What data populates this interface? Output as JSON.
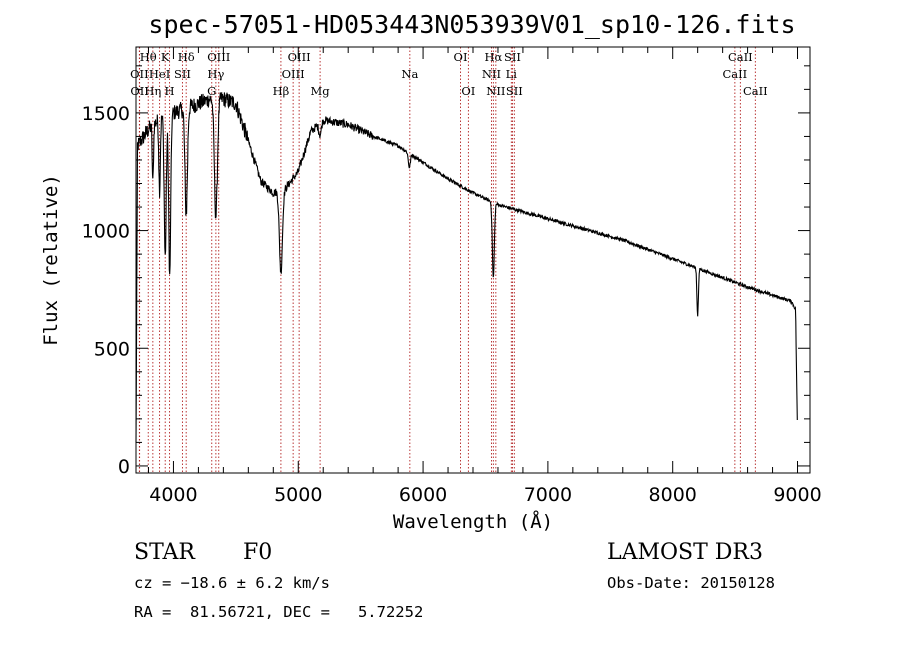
{
  "chart_data": {
    "type": "line",
    "title": "spec-57051-HD053443N053939V01_sp10-126.fits",
    "xlabel": "Wavelength (Å)",
    "ylabel": "Flux (relative)",
    "xlim": [
      3700,
      9100
    ],
    "ylim": [
      -30,
      1780
    ],
    "xticks": [
      4000,
      5000,
      6000,
      7000,
      8000,
      9000
    ],
    "yticks": [
      0,
      500,
      1000,
      1500
    ],
    "series": [
      {
        "name": "flux",
        "continuum": [
          [
            3700,
            1350
          ],
          [
            3800,
            1430
          ],
          [
            3900,
            1480
          ],
          [
            4000,
            1500
          ],
          [
            4100,
            1520
          ],
          [
            4200,
            1540
          ],
          [
            4300,
            1560
          ],
          [
            4400,
            1560
          ],
          [
            4500,
            1540
          ],
          [
            4600,
            1380
          ],
          [
            4700,
            1210
          ],
          [
            4800,
            1160
          ],
          [
            4900,
            1180
          ],
          [
            5000,
            1250
          ],
          [
            5100,
            1420
          ],
          [
            5200,
            1470
          ],
          [
            5400,
            1450
          ],
          [
            5600,
            1400
          ],
          [
            5800,
            1360
          ],
          [
            6000,
            1290
          ],
          [
            6200,
            1220
          ],
          [
            6400,
            1160
          ],
          [
            6600,
            1110
          ],
          [
            6800,
            1080
          ],
          [
            7000,
            1050
          ],
          [
            7200,
            1020
          ],
          [
            7400,
            990
          ],
          [
            7600,
            960
          ],
          [
            7800,
            920
          ],
          [
            8000,
            880
          ],
          [
            8200,
            840
          ],
          [
            8400,
            800
          ],
          [
            8600,
            760
          ],
          [
            8800,
            725
          ],
          [
            8950,
            700
          ],
          [
            9000,
            650
          ]
        ],
        "absorption_lines": [
          {
            "center": 3934,
            "depth": 600,
            "width": 8
          },
          {
            "center": 3970,
            "depth": 700,
            "width": 8
          },
          {
            "center": 3889,
            "depth": 300,
            "width": 6
          },
          {
            "center": 3835,
            "depth": 250,
            "width": 5
          },
          {
            "center": 4102,
            "depth": 450,
            "width": 10
          },
          {
            "center": 4340,
            "depth": 500,
            "width": 12
          },
          {
            "center": 4861,
            "depth": 350,
            "width": 12
          },
          {
            "center": 6563,
            "depth": 320,
            "width": 8
          },
          {
            "center": 8200,
            "depth": 200,
            "width": 6
          },
          {
            "center": 5890,
            "depth": 60,
            "width": 8
          },
          {
            "center": 5175,
            "depth": 50,
            "width": 10
          }
        ]
      }
    ],
    "emission_lines": [
      {
        "label": "OII",
        "wave": 3727,
        "row": 2
      },
      {
        "label": "OII",
        "wave": 3729,
        "row": 3
      },
      {
        "label": "Hθ",
        "wave": 3798,
        "row": 1
      },
      {
        "label": "Hη",
        "wave": 3835,
        "row": 3
      },
      {
        "label": "HeI",
        "wave": 3889,
        "row": 2
      },
      {
        "label": "K",
        "wave": 3934,
        "row": 1
      },
      {
        "label": "H",
        "wave": 3969,
        "row": 3
      },
      {
        "label": "Hδ",
        "wave": 4102,
        "row": 1
      },
      {
        "label": "SII",
        "wave": 4072,
        "row": 2
      },
      {
        "label": "Hγ",
        "wave": 4340,
        "row": 2
      },
      {
        "label": "OIII",
        "wave": 4363,
        "row": 1
      },
      {
        "label": "G",
        "wave": 4307,
        "row": 3
      },
      {
        "label": "Hβ",
        "wave": 4861,
        "row": 3
      },
      {
        "label": "OIII",
        "wave": 4959,
        "row": 2
      },
      {
        "label": "OIII",
        "wave": 5007,
        "row": 1
      },
      {
        "label": "Mg",
        "wave": 5175,
        "row": 3
      },
      {
        "label": "Na",
        "wave": 5894,
        "row": 2
      },
      {
        "label": "OI",
        "wave": 6300,
        "row": 1
      },
      {
        "label": "OI",
        "wave": 6363,
        "row": 3
      },
      {
        "label": "NII",
        "wave": 6548,
        "row": 2
      },
      {
        "label": "Hα",
        "wave": 6563,
        "row": 1
      },
      {
        "label": "NII",
        "wave": 6583,
        "row": 3
      },
      {
        "label": "SII",
        "wave": 6716,
        "row": 1
      },
      {
        "label": "Li",
        "wave": 6707,
        "row": 2
      },
      {
        "label": "SII",
        "wave": 6731,
        "row": 3
      },
      {
        "label": "CaII",
        "wave": 8498,
        "row": 2
      },
      {
        "label": "CaII",
        "wave": 8542,
        "row": 1
      },
      {
        "label": "CaII",
        "wave": 8662,
        "row": 3
      }
    ],
    "line_color": "#000000",
    "marker_color": "#b22222"
  },
  "info": {
    "class_label": "STAR",
    "subclass": "F0",
    "survey": "LAMOST DR3",
    "cz": "cz = −18.6 ± 6.2 km/s",
    "obs_date": "Obs-Date: 20150128",
    "coords": "RA =  81.56721, DEC =   5.72252"
  }
}
